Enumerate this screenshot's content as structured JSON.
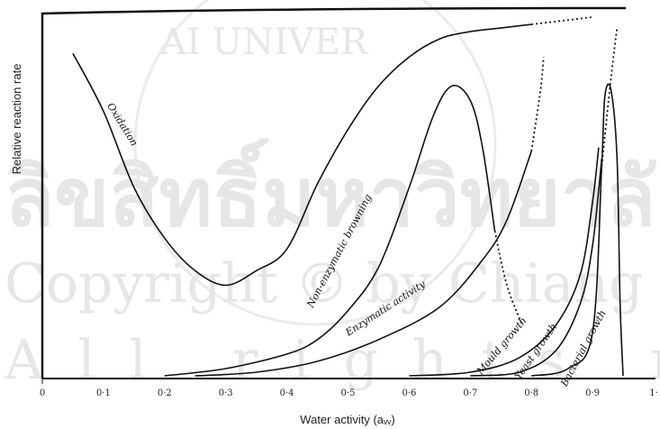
{
  "chart_data": {
    "type": "line",
    "xlabel": "Water activity (aᵥᵥ)",
    "ylabel": "Relative reaction rate",
    "xlim": [
      0,
      1.0
    ],
    "ylim": [
      0,
      100
    ],
    "grid": false,
    "x_tick_labels": [
      "0",
      "0·1",
      "0·2",
      "0·3",
      "0·4",
      "0·5",
      "0·6",
      "0·7",
      "0·8",
      "0·9",
      "1·"
    ],
    "series": [
      {
        "name": "Oxidation",
        "solid": [
          [
            0.05,
            89
          ],
          [
            0.1,
            73
          ],
          [
            0.15,
            52
          ],
          [
            0.2,
            38
          ],
          [
            0.25,
            29
          ],
          [
            0.3,
            25
          ],
          [
            0.35,
            29
          ],
          [
            0.4,
            35
          ],
          [
            0.45,
            53
          ],
          [
            0.5,
            68
          ],
          [
            0.55,
            80
          ],
          [
            0.6,
            88
          ],
          [
            0.65,
            93
          ],
          [
            0.7,
            95
          ],
          [
            0.75,
            96
          ],
          [
            0.8,
            97
          ]
        ],
        "dotted": [
          [
            0.8,
            97
          ],
          [
            0.85,
            98
          ],
          [
            0.9,
            99
          ]
        ]
      },
      {
        "name": "Non-enzymatic browning",
        "solid": [
          [
            0.2,
            0
          ],
          [
            0.3,
            2
          ],
          [
            0.4,
            6
          ],
          [
            0.45,
            10
          ],
          [
            0.5,
            18
          ],
          [
            0.55,
            30
          ],
          [
            0.6,
            52
          ],
          [
            0.64,
            72
          ],
          [
            0.67,
            80
          ],
          [
            0.7,
            76
          ],
          [
            0.72,
            63
          ],
          [
            0.74,
            40
          ]
        ],
        "dotted": [
          [
            0.74,
            40
          ],
          [
            0.76,
            25
          ],
          [
            0.785,
            14
          ]
        ]
      },
      {
        "name": "Enzymatic activity",
        "solid": [
          [
            0.25,
            0
          ],
          [
            0.35,
            1
          ],
          [
            0.45,
            4
          ],
          [
            0.55,
            10
          ],
          [
            0.65,
            19
          ],
          [
            0.72,
            32
          ],
          [
            0.76,
            43
          ],
          [
            0.8,
            62
          ]
        ],
        "dotted": [
          [
            0.8,
            62
          ],
          [
            0.815,
            79
          ],
          [
            0.82,
            88
          ]
        ]
      },
      {
        "name": "Mould growth",
        "solid": [
          [
            0.6,
            0
          ],
          [
            0.7,
            1
          ],
          [
            0.78,
            5
          ],
          [
            0.84,
            14
          ],
          [
            0.88,
            28
          ],
          [
            0.9,
            48
          ],
          [
            0.91,
            63
          ]
        ],
        "dotted": []
      },
      {
        "name": "Yeast growth",
        "solid": [
          [
            0.7,
            0
          ],
          [
            0.78,
            1
          ],
          [
            0.84,
            7
          ],
          [
            0.88,
            20
          ],
          [
            0.9,
            36
          ],
          [
            0.915,
            60
          ]
        ],
        "dotted": []
      },
      {
        "name": "Bacterial growth",
        "solid": [
          [
            0.8,
            0
          ],
          [
            0.86,
            2
          ],
          [
            0.9,
            12
          ],
          [
            0.915,
            58
          ],
          [
            0.92,
            77
          ],
          [
            0.93,
            79
          ],
          [
            0.94,
            60
          ],
          [
            0.945,
            20
          ],
          [
            0.95,
            0
          ]
        ],
        "dotted": [
          [
            0.915,
            58
          ],
          [
            0.93,
            82
          ],
          [
            0.94,
            96
          ]
        ]
      }
    ]
  }
}
